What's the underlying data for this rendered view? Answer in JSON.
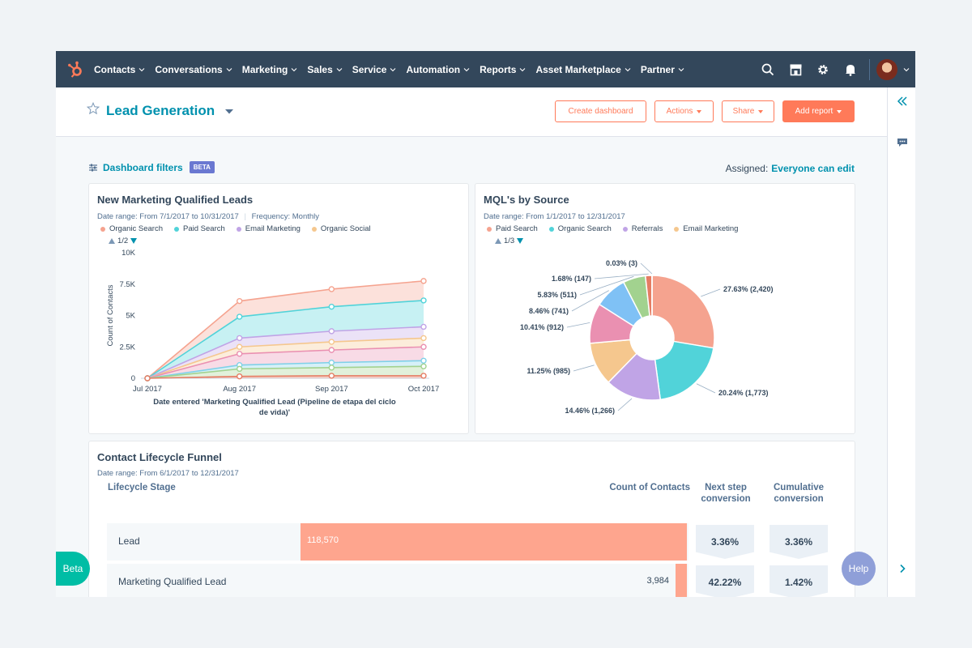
{
  "nav": {
    "items": [
      {
        "label": "Contacts"
      },
      {
        "label": "Conversations"
      },
      {
        "label": "Marketing"
      },
      {
        "label": "Sales"
      },
      {
        "label": "Service"
      },
      {
        "label": "Automation"
      },
      {
        "label": "Reports"
      },
      {
        "label": "Asset Marketplace"
      },
      {
        "label": "Partner"
      }
    ]
  },
  "header": {
    "title": "Lead Generation",
    "buttons": {
      "create": "Create dashboard",
      "actions": "Actions",
      "share": "Share",
      "add_report": "Add report"
    }
  },
  "filters": {
    "label": "Dashboard filters",
    "badge": "BETA",
    "assigned_label": "Assigned:",
    "assigned_value": "Everyone can edit"
  },
  "colors": {
    "accent": "#ff7a59",
    "link": "#0091ae",
    "nav_bg": "#33475b"
  },
  "mql_chart": {
    "title": "New Marketing Qualified Leads",
    "date_range": "Date range: From 7/1/2017 to 10/31/2017",
    "frequency": "Frequency: Monthly",
    "pager": "1/2",
    "chart_data": {
      "type": "area",
      "x": [
        "Jul 2017",
        "Aug 2017",
        "Sep 2017",
        "Oct 2017"
      ],
      "xlabel_line1": "Date entered 'Marketing Qualified Lead (Pipeline de etapa del ciclo",
      "xlabel_line2": "de vida)'",
      "ylabel": "Count of Contacts",
      "yticks": [
        "0",
        "2.5K",
        "5K",
        "7.5K",
        "10K"
      ],
      "ylim": [
        0,
        10000
      ],
      "legend": [
        {
          "name": "Organic Search",
          "color": "#f5a38f"
        },
        {
          "name": "Paid Search",
          "color": "#51d3d9"
        },
        {
          "name": "Email Marketing",
          "color": "#c0a4e6"
        },
        {
          "name": "Organic Social",
          "color": "#f5c78e"
        }
      ],
      "series": [
        {
          "color": "#f5a38f",
          "values": [
            0,
            6150,
            7100,
            7750
          ]
        },
        {
          "color": "#51d3d9",
          "values": [
            0,
            4900,
            5700,
            6200
          ]
        },
        {
          "color": "#c0a4e6",
          "values": [
            0,
            3200,
            3750,
            4100
          ]
        },
        {
          "color": "#f5c78e",
          "values": [
            0,
            2500,
            2900,
            3200
          ]
        },
        {
          "color": "#ea90b1",
          "values": [
            0,
            1950,
            2250,
            2500
          ]
        },
        {
          "color": "#7fd1e8",
          "values": [
            0,
            1050,
            1250,
            1400
          ]
        },
        {
          "color": "#a2d28f",
          "values": [
            0,
            750,
            850,
            950
          ]
        },
        {
          "color": "#e57c63",
          "values": [
            0,
            150,
            200,
            200
          ]
        }
      ]
    }
  },
  "source_chart": {
    "title": "MQL's by Source",
    "date_range": "Date range: From 1/1/2017 to 12/31/2017",
    "pager": "1/3",
    "chart_data": {
      "type": "pie",
      "legend": [
        {
          "name": "Paid Search",
          "color": "#f5a38f"
        },
        {
          "name": "Organic Search",
          "color": "#51d3d9"
        },
        {
          "name": "Referrals",
          "color": "#c0a4e6"
        },
        {
          "name": "Email Marketing",
          "color": "#f5c78e"
        }
      ],
      "slices": [
        {
          "label": "27.63% (2,420)",
          "value": 27.63,
          "color": "#f5a38f"
        },
        {
          "label": "20.24% (1,773)",
          "value": 20.24,
          "color": "#51d3d9"
        },
        {
          "label": "14.46% (1,266)",
          "value": 14.46,
          "color": "#c0a4e6"
        },
        {
          "label": "11.25% (985)",
          "value": 11.25,
          "color": "#f5c78e"
        },
        {
          "label": "10.41% (912)",
          "value": 10.41,
          "color": "#ea90b1"
        },
        {
          "label": "8.46% (741)",
          "value": 8.46,
          "color": "#7fc1f5"
        },
        {
          "label": "5.83% (511)",
          "value": 5.83,
          "color": "#a2d28f"
        },
        {
          "label": "1.68% (147)",
          "value": 1.68,
          "color": "#e57c63"
        },
        {
          "label": "0.03% (3)",
          "value": 0.03,
          "color": "#8a6bb0"
        }
      ]
    }
  },
  "funnel": {
    "title": "Contact Lifecycle Funnel",
    "date_range": "Date range: From 6/1/2017 to 12/31/2017",
    "col_stage": "Lifecycle Stage",
    "col_count": "Count of Contacts",
    "col_next_line1": "Next step",
    "col_next_line2": "conversion",
    "col_cum_line1": "Cumulative",
    "col_cum_line2": "conversion",
    "max_count": 118570,
    "rows": [
      {
        "stage": "Lead",
        "count": 118570,
        "count_label": "118,570",
        "next": "3.36%",
        "cumulative": "3.36%"
      },
      {
        "stage": "Marketing Qualified Lead",
        "count": 3984,
        "count_label": "3,984",
        "next": "42.22%",
        "cumulative": "1.42%"
      }
    ]
  },
  "floating": {
    "beta": "Beta",
    "help": "Help"
  }
}
